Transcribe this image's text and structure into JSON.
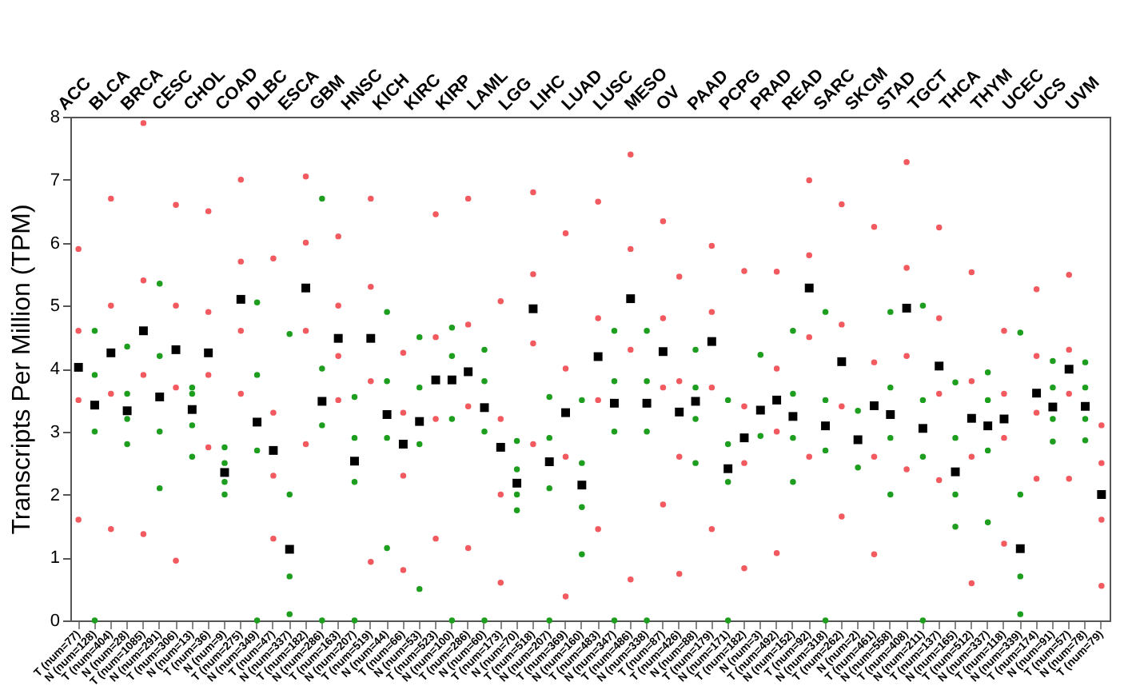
{
  "chart_data": {
    "type": "scatter",
    "ylabel": "Transcripts Per Million (TPM)",
    "ylim": [
      0,
      8
    ],
    "yticks": [
      0,
      1,
      2,
      3,
      4,
      5,
      6,
      7,
      8
    ],
    "marker": "circle",
    "categories": [
      "T (num=77)",
      "N (num=128)",
      "T (num=404)",
      "N (num=28)",
      "T (num=1085)",
      "N (num=291)",
      "T (num=306)",
      "N (num=13)",
      "T (num=36)",
      "N (num=9)",
      "T (num=275)",
      "N (num=349)",
      "T (num=47)",
      "N (num=337)",
      "T (num=182)",
      "N (num=286)",
      "T (num=163)",
      "N (num=207)",
      "T (num=519)",
      "N (num=44)",
      "T (num=66)",
      "N (num=53)",
      "T (num=523)",
      "N (num=100)",
      "T (num=286)",
      "N (num=60)",
      "T (num=173)",
      "N (num=70)",
      "T (num=518)",
      "N (num=207)",
      "T (num=369)",
      "N (num=160)",
      "T (num=483)",
      "N (num=347)",
      "T (num=486)",
      "N (num=338)",
      "T (num=87)",
      "T (num=426)",
      "N (num=88)",
      "T (num=179)",
      "N (num=171)",
      "T (num=182)",
      "N (num=3)",
      "T (num=492)",
      "N (num=152)",
      "T (num=92)",
      "N (num=318)",
      "T (num=262)",
      "N (num=2)",
      "T (num=461)",
      "N (num=558)",
      "T (num=408)",
      "N (num=211)",
      "T (num=137)",
      "N (num=165)",
      "T (num=512)",
      "N (num=337)",
      "T (num=118)",
      "N (num=339)",
      "T (num=174)",
      "N (num=91)",
      "T (num=57)",
      "N (num=78)",
      "T (num=79)"
    ],
    "annotations": [
      "ACC",
      "BLCA",
      "BRCA",
      "CESC",
      "CHOL",
      "COAD",
      "DLBC",
      "ESCA",
      "GBM",
      "HNSC",
      "KICH",
      "KIRC",
      "KIRP",
      "LAML",
      "LGG",
      "LIHC",
      "LUAD",
      "LUSC",
      "MESO",
      "OV",
      "PAAD",
      "PCPG",
      "PRAD",
      "READ",
      "SARC",
      "SKCM",
      "STAD",
      "TGCT",
      "THCA",
      "THYM",
      "UCEC",
      "UCS",
      "UVM"
    ],
    "series": [
      {
        "colors": [
          "#f25a5f",
          "#1e9e1e",
          "#f25a5f",
          "#1e9e1e",
          "#f25a5f",
          "#1e9e1e",
          "#f25a5f",
          "#1e9e1e",
          "#f25a5f",
          "#1e9e1e",
          "#f25a5f",
          "#1e9e1e",
          "#f25a5f",
          "#1e9e1e",
          "#f25a5f",
          "#1e9e1e",
          "#f25a5f",
          "#1e9e1e",
          "#f25a5f",
          "#1e9e1e",
          "#f25a5f",
          "#1e9e1e",
          "#f25a5f",
          "#1e9e1e",
          "#f25a5f",
          "#1e9e1e",
          "#f25a5f",
          "#1e9e1e",
          "#f25a5f",
          "#1e9e1e",
          "#f25a5f",
          "#1e9e1e",
          "#f25a5f",
          "#1e9e1e",
          "#f25a5f",
          "#1e9e1e",
          "#f25a5f",
          "#f25a5f",
          "#1e9e1e",
          "#f25a5f",
          "#1e9e1e",
          "#f25a5f",
          "#1e9e1e",
          "#f25a5f",
          "#1e9e1e",
          "#f25a5f",
          "#1e9e1e",
          "#f25a5f",
          "#1e9e1e",
          "#f25a5f",
          "#1e9e1e",
          "#f25a5f",
          "#1e9e1e",
          "#f25a5f",
          "#1e9e1e",
          "#f25a5f",
          "#1e9e1e",
          "#f25a5f",
          "#1e9e1e",
          "#f25a5f",
          "#1e9e1e",
          "#f25a5f",
          "#1e9e1e",
          "#f25a5f"
        ],
        "values": [
          1.6,
          0,
          1.45,
          2.8,
          1.37,
          2.1,
          0.95,
          2.6,
          2.75,
          2.0,
          3.6,
          0,
          1.3,
          0.1,
          2.8,
          0,
          3.5,
          0,
          0.93,
          1.15,
          0.8,
          0.5,
          1.3,
          0,
          1.15,
          0,
          0.6,
          1.75,
          2.8,
          0,
          0.38,
          1.05,
          1.45,
          0,
          0.65,
          0,
          1.84,
          0.74,
          2.5,
          1.45,
          0,
          0.83,
          2.93,
          1.07,
          2.2,
          2.6,
          0,
          1.65,
          2.43,
          1.05,
          2.0,
          2.4,
          0,
          2.23,
          1.49,
          0.59,
          1.56,
          1.22,
          0.1,
          2.25,
          2.84,
          2.25,
          2.86,
          0.55
        ]
      },
      {
        "colors": [
          "#f25a5f",
          "#1e9e1e",
          "#f25a5f",
          "#1e9e1e",
          "#f25a5f",
          "#1e9e1e",
          "#f25a5f",
          "#1e9e1e",
          "#f25a5f",
          "#1e9e1e",
          "#f25a5f",
          "#1e9e1e",
          "#f25a5f",
          "#1e9e1e",
          "#f25a5f",
          "#1e9e1e",
          "#f25a5f",
          "#1e9e1e",
          "#f25a5f",
          "#1e9e1e",
          "#f25a5f",
          "#1e9e1e",
          "#f25a5f",
          "#1e9e1e",
          "#f25a5f",
          "#1e9e1e",
          "#f25a5f",
          "#1e9e1e",
          "#f25a5f",
          "#1e9e1e",
          "#f25a5f",
          "#1e9e1e",
          "#f25a5f",
          "#1e9e1e",
          "#f25a5f",
          "#1e9e1e",
          "#f25a5f",
          "#f25a5f",
          "#1e9e1e",
          "#f25a5f",
          "#1e9e1e",
          "#f25a5f",
          "#1e9e1e",
          "#f25a5f",
          "#1e9e1e",
          "#f25a5f",
          "#1e9e1e",
          "#f25a5f",
          "#1e9e1e",
          "#f25a5f",
          "#1e9e1e",
          "#f25a5f",
          "#1e9e1e",
          "#f25a5f",
          "#1e9e1e",
          "#f25a5f",
          "#1e9e1e",
          "#f25a5f",
          "#1e9e1e",
          "#f25a5f",
          "#1e9e1e",
          "#f25a5f",
          "#1e9e1e",
          "#f25a5f"
        ],
        "values": [
          3.5,
          3.0,
          3.6,
          3.2,
          3.9,
          3.0,
          3.7,
          3.1,
          3.9,
          2.2,
          4.6,
          2.7,
          2.3,
          0.7,
          4.6,
          3.1,
          4.2,
          2.2,
          3.8,
          2.9,
          2.3,
          2.8,
          3.2,
          3.2,
          3.4,
          3.0,
          2.0,
          2.0,
          4.4,
          2.1,
          2.6,
          1.8,
          3.5,
          3.0,
          4.3,
          3.0,
          3.7,
          2.6,
          3.2,
          3.7,
          2.2,
          2.5,
          null,
          3.0,
          2.9,
          4.5,
          2.7,
          3.4,
          null,
          2.6,
          2.9,
          4.2,
          2.6,
          3.6,
          2.0,
          2.6,
          2.7,
          2.9,
          0.7,
          3.3,
          3.2,
          3.6,
          3.2,
          1.6
        ]
      },
      {
        "colors": [
          "#f25a5f",
          "#1e9e1e",
          "#f25a5f",
          "#1e9e1e",
          "#f25a5f",
          "#1e9e1e",
          "#f25a5f",
          "#1e9e1e",
          "#f25a5f",
          "#1e9e1e",
          "#f25a5f",
          "#1e9e1e",
          "#f25a5f",
          "#1e9e1e",
          "#f25a5f",
          "#1e9e1e",
          "#f25a5f",
          "#1e9e1e",
          "#f25a5f",
          "#1e9e1e",
          "#f25a5f",
          "#1e9e1e",
          "#f25a5f",
          "#1e9e1e",
          "#f25a5f",
          "#1e9e1e",
          "#f25a5f",
          "#1e9e1e",
          "#f25a5f",
          "#1e9e1e",
          "#f25a5f",
          "#1e9e1e",
          "#f25a5f",
          "#1e9e1e",
          "#f25a5f",
          "#1e9e1e",
          "#f25a5f",
          "#f25a5f",
          "#1e9e1e",
          "#f25a5f",
          "#1e9e1e",
          "#f25a5f",
          "#1e9e1e",
          "#f25a5f",
          "#1e9e1e",
          "#f25a5f",
          "#1e9e1e",
          "#f25a5f",
          "#1e9e1e",
          "#f25a5f",
          "#1e9e1e",
          "#f25a5f",
          "#1e9e1e",
          "#f25a5f",
          "#1e9e1e",
          "#f25a5f",
          "#1e9e1e",
          "#f25a5f",
          "#1e9e1e",
          "#f25a5f",
          "#1e9e1e",
          "#f25a5f",
          "#1e9e1e",
          "#f25a5f"
        ],
        "values": [
          4.6,
          3.9,
          5.0,
          3.6,
          5.4,
          4.2,
          5.0,
          3.6,
          4.9,
          2.5,
          5.7,
          3.9,
          3.3,
          2.0,
          6.0,
          4.0,
          5.0,
          2.9,
          5.3,
          3.8,
          3.3,
          3.7,
          4.5,
          4.2,
          4.7,
          3.8,
          3.2,
          2.4,
          5.5,
          2.9,
          4.0,
          2.5,
          4.8,
          3.8,
          5.9,
          3.8,
          4.8,
          3.8,
          3.7,
          4.9,
          2.8,
          3.4,
          null,
          4.0,
          3.6,
          5.8,
          3.5,
          4.7,
          null,
          4.1,
          3.7,
          5.6,
          3.5,
          4.8,
          2.9,
          3.8,
          3.5,
          3.6,
          2.0,
          4.2,
          3.7,
          4.3,
          3.7,
          2.5
        ]
      },
      {
        "colors": [
          "#f25a5f",
          "#1e9e1e",
          "#f25a5f",
          "#1e9e1e",
          "#f25a5f",
          "#1e9e1e",
          "#f25a5f",
          "#1e9e1e",
          "#f25a5f",
          "#1e9e1e",
          "#f25a5f",
          "#1e9e1e",
          "#f25a5f",
          "#1e9e1e",
          "#f25a5f",
          "#1e9e1e",
          "#f25a5f",
          "#1e9e1e",
          "#f25a5f",
          "#1e9e1e",
          "#f25a5f",
          "#1e9e1e",
          "#f25a5f",
          "#1e9e1e",
          "#f25a5f",
          "#1e9e1e",
          "#f25a5f",
          "#1e9e1e",
          "#f25a5f",
          "#1e9e1e",
          "#f25a5f",
          "#1e9e1e",
          "#f25a5f",
          "#1e9e1e",
          "#f25a5f",
          "#1e9e1e",
          "#f25a5f",
          "#f25a5f",
          "#1e9e1e",
          "#f25a5f",
          "#1e9e1e",
          "#f25a5f",
          "#1e9e1e",
          "#f25a5f",
          "#1e9e1e",
          "#f25a5f",
          "#1e9e1e",
          "#f25a5f",
          "#1e9e1e",
          "#f25a5f",
          "#1e9e1e",
          "#f25a5f",
          "#1e9e1e",
          "#f25a5f",
          "#1e9e1e",
          "#f25a5f",
          "#1e9e1e",
          "#f25a5f",
          "#1e9e1e",
          "#f25a5f",
          "#1e9e1e",
          "#f25a5f",
          "#1e9e1e",
          "#f25a5f"
        ],
        "values": [
          5.9,
          4.6,
          6.7,
          4.35,
          7.9,
          5.35,
          6.6,
          3.7,
          6.5,
          2.75,
          7.0,
          5.05,
          5.75,
          4.55,
          7.05,
          6.7,
          6.1,
          3.55,
          6.7,
          4.9,
          4.25,
          4.5,
          6.45,
          4.65,
          6.7,
          4.3,
          5.07,
          2.85,
          6.8,
          3.55,
          6.15,
          3.5,
          6.65,
          4.6,
          7.4,
          4.6,
          6.34,
          5.46,
          4.3,
          5.95,
          3.5,
          5.55,
          4.22,
          5.54,
          4.6,
          6.99,
          4.9,
          6.61,
          3.33,
          6.25,
          4.9,
          7.28,
          5.0,
          6.24,
          3.78,
          5.53,
          3.94,
          4.6,
          4.57,
          5.26,
          4.12,
          5.49,
          4.1,
          3.1
        ]
      },
      {
        "color": "#000000",
        "marker": "square",
        "values": [
          4.02,
          3.42,
          4.25,
          3.33,
          4.6,
          3.55,
          4.3,
          3.35,
          4.25,
          2.35,
          5.1,
          3.15,
          2.7,
          1.13,
          5.28,
          3.48,
          4.48,
          2.53,
          4.48,
          3.27,
          2.8,
          3.16,
          3.82,
          3.82,
          3.95,
          3.38,
          2.75,
          2.18,
          4.95,
          2.52,
          3.3,
          2.15,
          4.19,
          3.45,
          5.11,
          3.45,
          4.27,
          3.31,
          3.48,
          4.43,
          2.41,
          2.9,
          3.34,
          3.5,
          3.24,
          5.28,
          3.09,
          4.11,
          2.87,
          3.41,
          3.27,
          4.96,
          3.05,
          4.04,
          2.36,
          3.21,
          3.09,
          3.2,
          1.14,
          3.61,
          3.39,
          3.99,
          3.4,
          2.0
        ]
      }
    ]
  }
}
